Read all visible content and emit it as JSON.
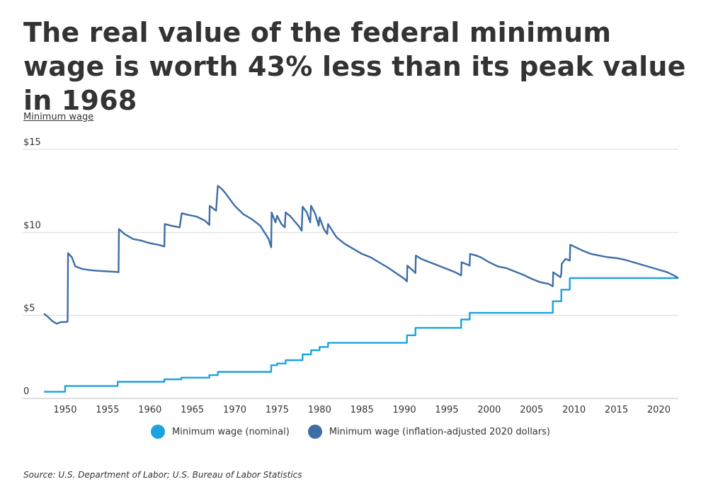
{
  "title": "The real value of the federal minimum wage is worth 43% less than its peak value in 1968",
  "source": "Source:  U.S. Department of Labor; U.S. Bureau of Labor Statistics",
  "chart_data": {
    "type": "line",
    "title": "The real value of the federal minimum wage is worth 43% less than its peak value in 1968",
    "ylabel": "Minimum wage",
    "xlabel": "",
    "xlim": [
      1947.5,
      2022.3
    ],
    "ylim": [
      0,
      15
    ],
    "yticks": [
      0,
      5,
      10,
      15
    ],
    "ytick_labels": [
      "0",
      "$5",
      "$10",
      "$15"
    ],
    "xticks": [
      1950,
      1955,
      1960,
      1965,
      1970,
      1975,
      1980,
      1985,
      1990,
      1995,
      2000,
      2005,
      2010,
      2015,
      2020
    ],
    "xtick_labels": [
      "1950",
      "1955",
      "1960",
      "1965",
      "1970",
      "1975",
      "1980",
      "1985",
      "1990",
      "1995",
      "2000",
      "2005",
      "2010",
      "2015",
      "2020"
    ],
    "grid": true,
    "legend_position": "bottom",
    "series": [
      {
        "name": "Minimum wage (nominal)",
        "color": "#1aa3e0",
        "step": true,
        "points": [
          [
            1947.5,
            0.4
          ],
          [
            1950.0,
            0.75
          ],
          [
            1956.2,
            1.0
          ],
          [
            1961.7,
            1.15
          ],
          [
            1963.7,
            1.25
          ],
          [
            1967.0,
            1.4
          ],
          [
            1968.0,
            1.6
          ],
          [
            1974.3,
            2.0
          ],
          [
            1975.0,
            2.1
          ],
          [
            1976.0,
            2.3
          ],
          [
            1978.0,
            2.65
          ],
          [
            1979.0,
            2.9
          ],
          [
            1980.0,
            3.1
          ],
          [
            1981.0,
            3.35
          ],
          [
            1990.3,
            3.8
          ],
          [
            1991.3,
            4.25
          ],
          [
            1996.7,
            4.75
          ],
          [
            1997.7,
            5.15
          ],
          [
            2007.5,
            5.85
          ],
          [
            2008.5,
            6.55
          ],
          [
            2009.5,
            7.25
          ],
          [
            2022.3,
            7.25
          ]
        ]
      },
      {
        "name": "Minimum wage (inflation-adjusted 2020 dollars)",
        "color": "#3d6ea5",
        "step": false,
        "points": [
          [
            1947.5,
            5.1
          ],
          [
            1948.0,
            4.9
          ],
          [
            1948.5,
            4.65
          ],
          [
            1949.0,
            4.5
          ],
          [
            1949.5,
            4.6
          ],
          [
            1950.0,
            4.6
          ],
          [
            1950.3,
            4.62
          ],
          [
            1950.35,
            8.75
          ],
          [
            1950.8,
            8.5
          ],
          [
            1951.2,
            7.95
          ],
          [
            1951.5,
            7.9
          ],
          [
            1952.0,
            7.8
          ],
          [
            1953.0,
            7.72
          ],
          [
            1954.0,
            7.68
          ],
          [
            1955.0,
            7.65
          ],
          [
            1956.0,
            7.62
          ],
          [
            1956.3,
            7.6
          ],
          [
            1956.35,
            10.2
          ],
          [
            1957.0,
            9.9
          ],
          [
            1958.0,
            9.6
          ],
          [
            1959.0,
            9.5
          ],
          [
            1960.0,
            9.35
          ],
          [
            1961.0,
            9.25
          ],
          [
            1961.7,
            9.15
          ],
          [
            1961.75,
            10.5
          ],
          [
            1962.5,
            10.4
          ],
          [
            1963.5,
            10.3
          ],
          [
            1963.75,
            11.15
          ],
          [
            1964.5,
            11.05
          ],
          [
            1965.5,
            10.95
          ],
          [
            1966.5,
            10.7
          ],
          [
            1967.0,
            10.45
          ],
          [
            1967.05,
            11.6
          ],
          [
            1967.8,
            11.3
          ],
          [
            1968.0,
            12.8
          ],
          [
            1968.5,
            12.6
          ],
          [
            1969.0,
            12.3
          ],
          [
            1970.0,
            11.6
          ],
          [
            1971.0,
            11.1
          ],
          [
            1972.0,
            10.8
          ],
          [
            1973.0,
            10.4
          ],
          [
            1974.0,
            9.6
          ],
          [
            1974.3,
            9.1
          ],
          [
            1974.35,
            11.2
          ],
          [
            1974.8,
            10.6
          ],
          [
            1975.0,
            11.0
          ],
          [
            1975.5,
            10.5
          ],
          [
            1975.9,
            10.3
          ],
          [
            1976.0,
            11.2
          ],
          [
            1976.5,
            11.0
          ],
          [
            1977.0,
            10.7
          ],
          [
            1977.5,
            10.4
          ],
          [
            1977.9,
            10.1
          ],
          [
            1978.0,
            11.55
          ],
          [
            1978.5,
            11.2
          ],
          [
            1978.9,
            10.6
          ],
          [
            1979.0,
            11.6
          ],
          [
            1979.5,
            11.1
          ],
          [
            1979.9,
            10.4
          ],
          [
            1980.0,
            10.9
          ],
          [
            1980.5,
            10.2
          ],
          [
            1980.9,
            9.9
          ],
          [
            1981.0,
            10.5
          ],
          [
            1981.5,
            10.1
          ],
          [
            1982.0,
            9.7
          ],
          [
            1983.0,
            9.3
          ],
          [
            1984.0,
            9.0
          ],
          [
            1985.0,
            8.7
          ],
          [
            1986.0,
            8.5
          ],
          [
            1987.0,
            8.2
          ],
          [
            1988.0,
            7.9
          ],
          [
            1989.0,
            7.55
          ],
          [
            1990.0,
            7.2
          ],
          [
            1990.3,
            7.05
          ],
          [
            1990.35,
            8.0
          ],
          [
            1991.0,
            7.7
          ],
          [
            1991.3,
            7.55
          ],
          [
            1991.35,
            8.6
          ],
          [
            1992.0,
            8.4
          ],
          [
            1993.0,
            8.2
          ],
          [
            1994.0,
            8.0
          ],
          [
            1995.0,
            7.8
          ],
          [
            1996.0,
            7.6
          ],
          [
            1996.7,
            7.4
          ],
          [
            1996.75,
            8.2
          ],
          [
            1997.5,
            8.05
          ],
          [
            1997.7,
            8.0
          ],
          [
            1997.75,
            8.7
          ],
          [
            1998.5,
            8.6
          ],
          [
            1999.0,
            8.5
          ],
          [
            2000.0,
            8.2
          ],
          [
            2001.0,
            7.95
          ],
          [
            2002.0,
            7.85
          ],
          [
            2003.0,
            7.65
          ],
          [
            2004.0,
            7.45
          ],
          [
            2005.0,
            7.2
          ],
          [
            2006.0,
            7.0
          ],
          [
            2007.0,
            6.9
          ],
          [
            2007.5,
            6.75
          ],
          [
            2007.55,
            7.6
          ],
          [
            2008.4,
            7.3
          ],
          [
            2008.5,
            7.5
          ],
          [
            2008.55,
            8.1
          ],
          [
            2009.0,
            8.4
          ],
          [
            2009.5,
            8.3
          ],
          [
            2009.55,
            9.25
          ],
          [
            2010.0,
            9.15
          ],
          [
            2011.0,
            8.9
          ],
          [
            2012.0,
            8.7
          ],
          [
            2013.0,
            8.6
          ],
          [
            2014.0,
            8.5
          ],
          [
            2015.0,
            8.45
          ],
          [
            2016.0,
            8.35
          ],
          [
            2017.0,
            8.2
          ],
          [
            2018.0,
            8.05
          ],
          [
            2019.0,
            7.9
          ],
          [
            2020.0,
            7.75
          ],
          [
            2021.0,
            7.6
          ],
          [
            2021.8,
            7.4
          ],
          [
            2022.3,
            7.25
          ]
        ]
      }
    ]
  }
}
